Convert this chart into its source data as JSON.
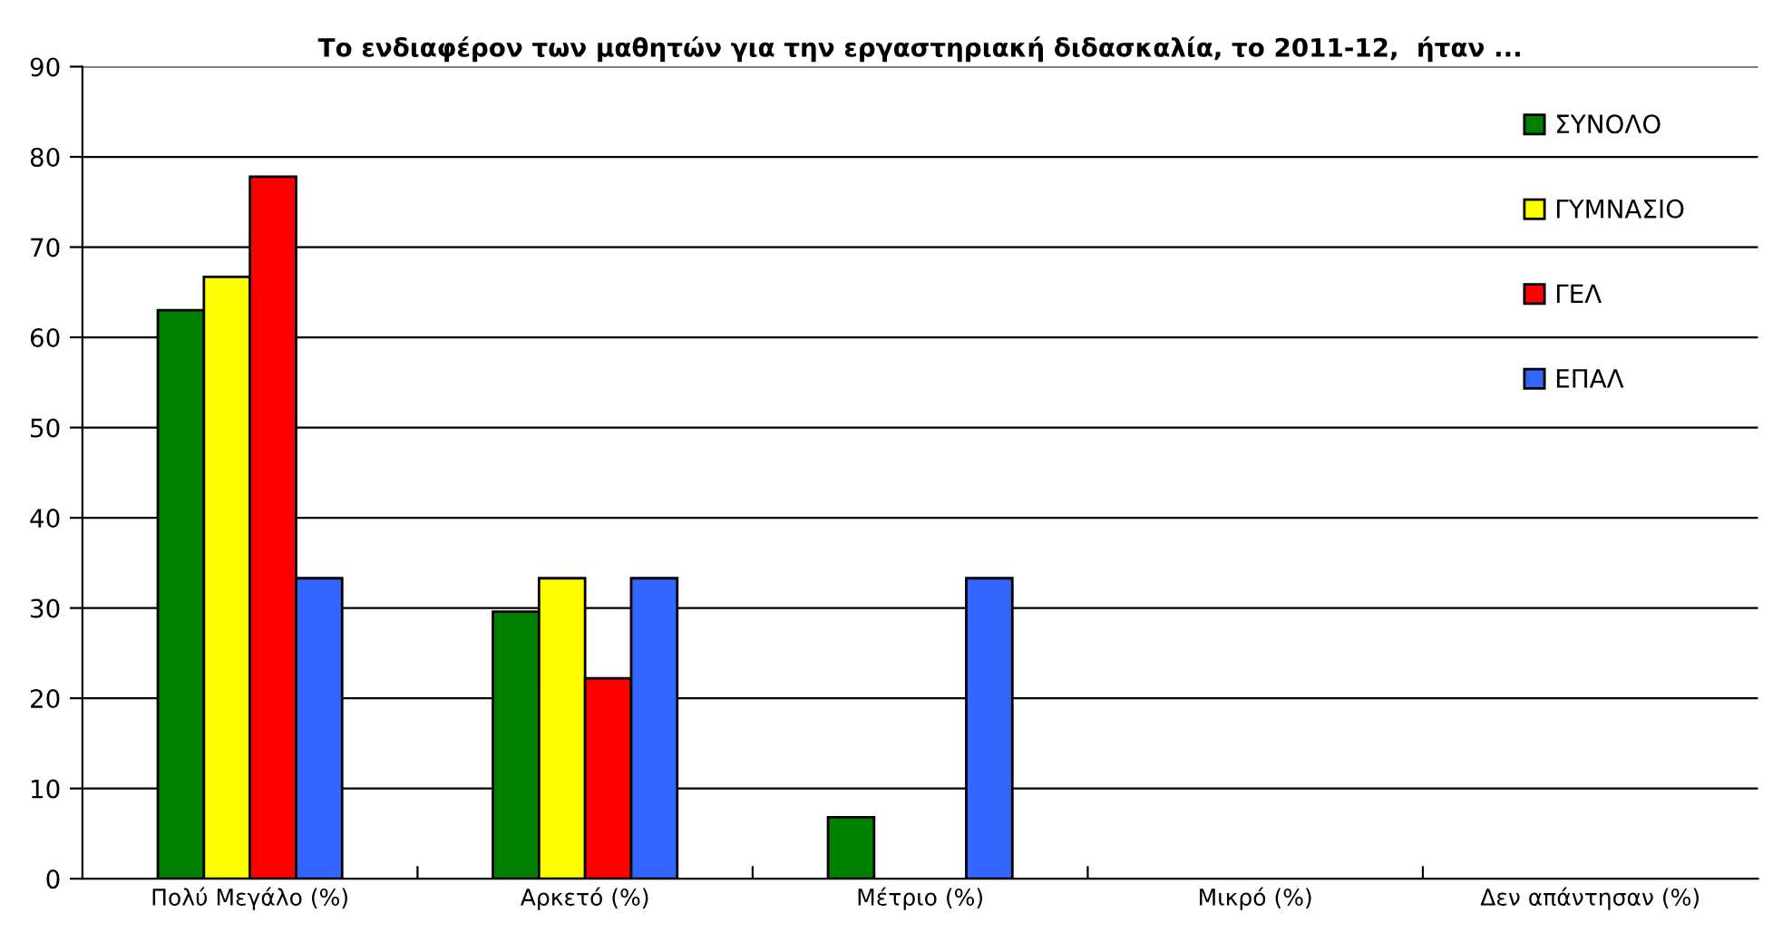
{
  "chart_data": {
    "type": "bar",
    "title": "Το ενδιαφέρον των μαθητών για την εργαστηριακή διδασκαλία, το 2011-12,  ήταν ...",
    "categories": [
      "Πολύ Μεγάλο (%)",
      "Αρκετό (%)",
      "Μέτριο (%)",
      "Μικρό (%)",
      "Δεν απάντησαν (%)"
    ],
    "series": [
      {
        "name": "ΣΥΝΟΛΟ",
        "color": "#008000",
        "values": [
          63,
          29.6,
          6.8,
          0,
          0
        ]
      },
      {
        "name": "ΓΥΜΝΑΣΙΟ",
        "color": "#ffff00",
        "values": [
          66.7,
          33.3,
          0,
          0,
          0
        ]
      },
      {
        "name": "ΓΕΛ",
        "color": "#ff0000",
        "values": [
          77.8,
          22.2,
          0,
          0,
          0
        ]
      },
      {
        "name": "ΕΠΑΛ",
        "color": "#3366ff",
        "values": [
          33.3,
          33.3,
          33.3,
          0,
          0
        ]
      }
    ],
    "ylim": [
      0,
      90
    ],
    "yticks": [
      0,
      10,
      20,
      30,
      40,
      50,
      60,
      70,
      80,
      90
    ],
    "grid": "y",
    "legend": "right"
  }
}
